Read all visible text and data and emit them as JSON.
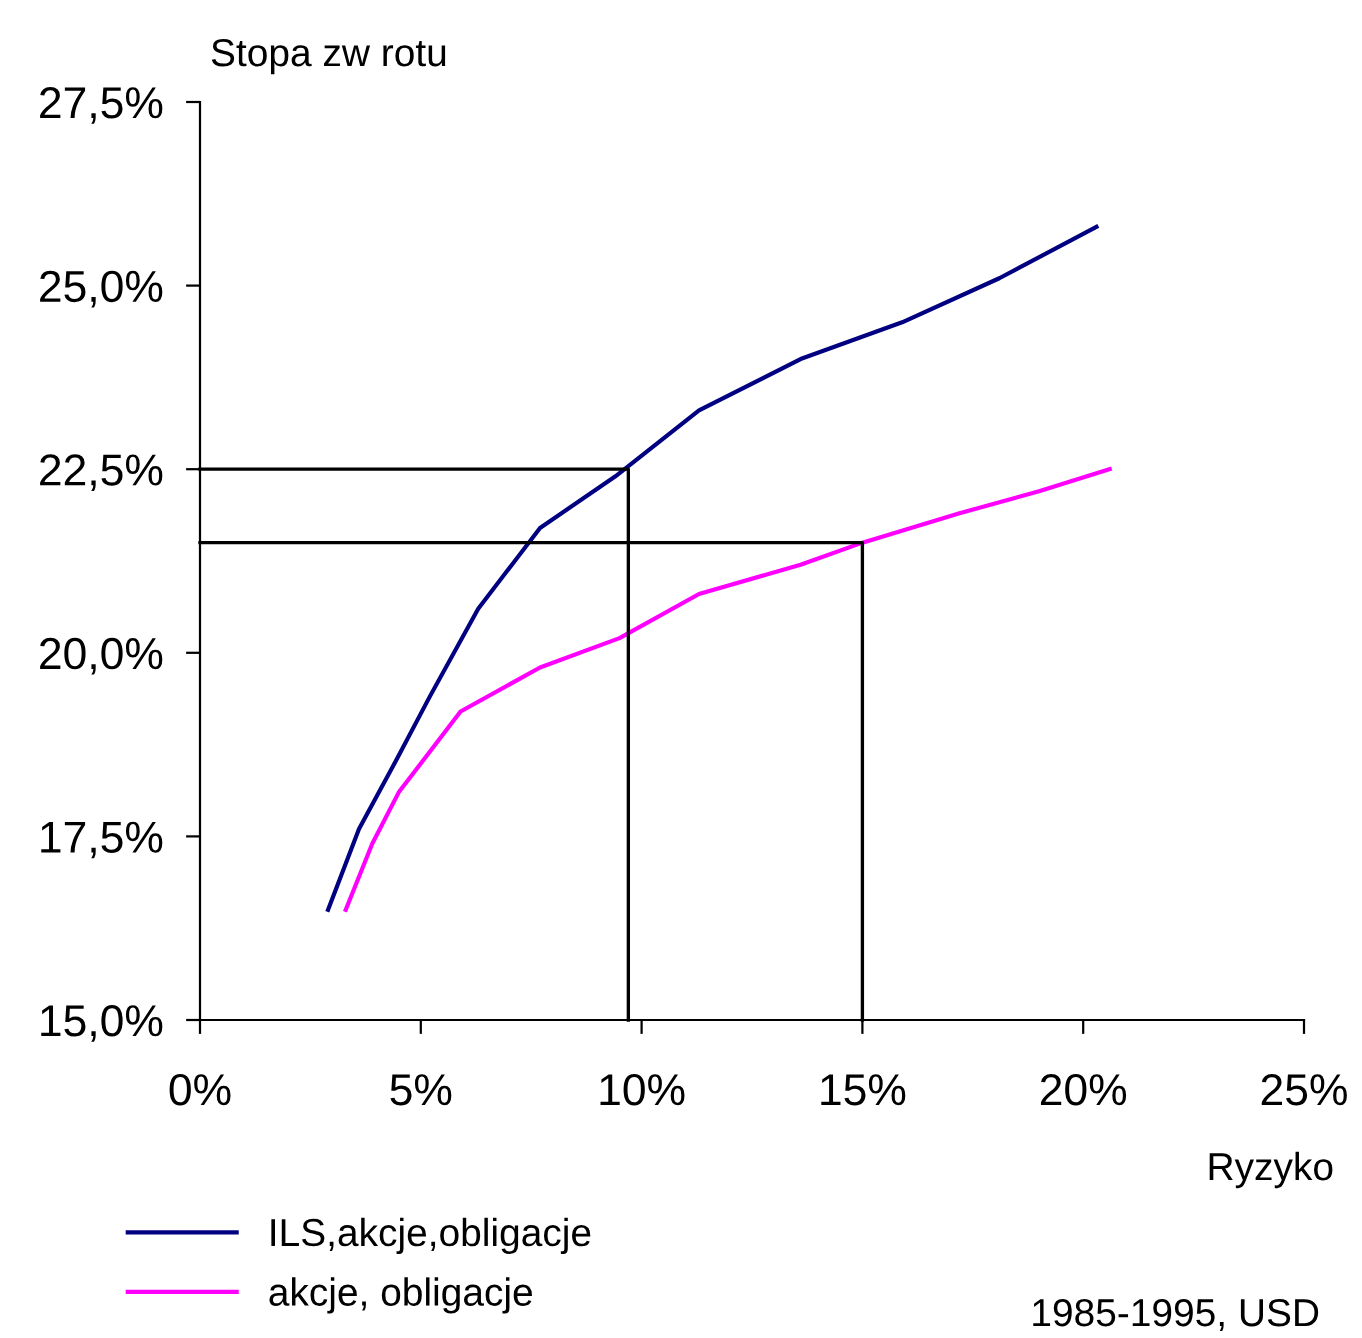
{
  "chart_data": {
    "type": "line",
    "ylabel": "Stopa zw rotu",
    "xlabel": "Ryzyko",
    "xlim": [
      0,
      25
    ],
    "xticks": [
      {
        "value": 0,
        "label": "0%"
      },
      {
        "value": 5,
        "label": "5%"
      },
      {
        "value": 10,
        "label": "10%"
      },
      {
        "value": 15,
        "label": "15%"
      },
      {
        "value": 20,
        "label": "20%"
      },
      {
        "value": 25,
        "label": "25%"
      }
    ],
    "ylim": [
      15,
      27.5
    ],
    "yticks": [
      {
        "value": 15,
        "label": "15,0%"
      },
      {
        "value": 17.5,
        "label": "17,5%"
      },
      {
        "value": 20,
        "label": "20,0%"
      },
      {
        "value": 22.5,
        "label": "22,5%"
      },
      {
        "value": 25,
        "label": "25,0%"
      },
      {
        "value": 27.5,
        "label": "27,5%"
      }
    ],
    "grid": false,
    "legend": "bottom",
    "marker": "none",
    "series": [
      {
        "name": "ILS,akcje,obligacje",
        "color": "#000080",
        "x": [
          2.9,
          3.6,
          4.5,
          5.2,
          6.3,
          7.7,
          9.4,
          11.3,
          13.6,
          15.9,
          18.1,
          20.3
        ],
        "values": [
          16.5,
          17.6,
          18.6,
          19.4,
          20.6,
          21.7,
          22.4,
          23.3,
          24.0,
          24.5,
          25.1,
          25.8
        ]
      },
      {
        "name": "akcje, obligacje",
        "color": "#ff00ff",
        "x": [
          3.3,
          3.9,
          4.5,
          5.9,
          7.7,
          9.5,
          11.3,
          13.6,
          15.0,
          17.2,
          19.0,
          20.6
        ],
        "values": [
          16.5,
          17.4,
          18.1,
          19.2,
          19.8,
          20.2,
          20.8,
          21.2,
          21.5,
          21.9,
          22.2,
          22.5
        ]
      },
      {
        "color": "#000000",
        "x": [
          0,
          9.7,
          9.7
        ],
        "values": [
          22.5,
          22.5,
          15
        ]
      },
      {
        "color": "#000000",
        "x": [
          0,
          15,
          15
        ],
        "values": [
          21.5,
          21.5,
          15
        ]
      }
    ],
    "annotations": [
      "1985-1995, USD"
    ]
  }
}
